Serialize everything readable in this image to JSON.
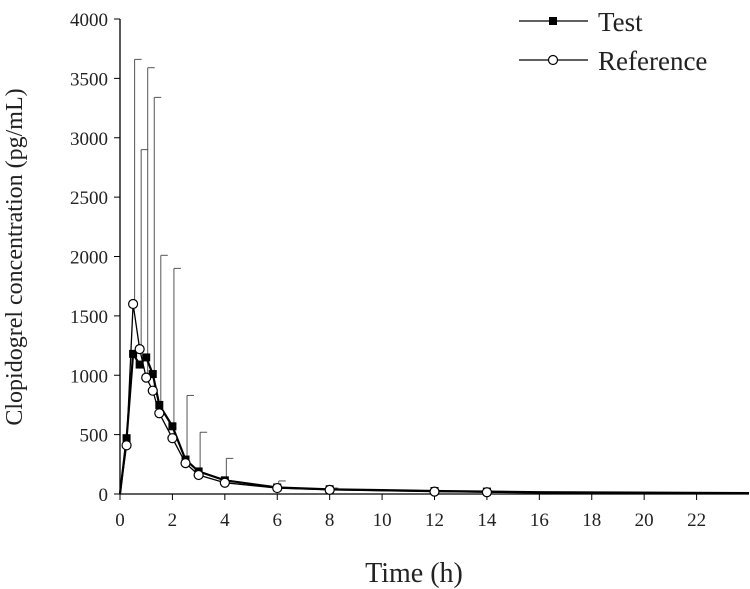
{
  "chart_data": {
    "type": "line",
    "title": "",
    "xlabel": "Time (h)",
    "ylabel": "Clopidogrel concentration (pg/mL)",
    "xlim": [
      0,
      24
    ],
    "ylim": [
      0,
      4000
    ],
    "x_ticks": [
      0,
      2,
      4,
      6,
      8,
      10,
      12,
      14,
      16,
      18,
      20,
      22
    ],
    "y_ticks": [
      0,
      500,
      1000,
      1500,
      2000,
      2500,
      3000,
      3500,
      4000
    ],
    "grid": false,
    "legend_position": "top-right",
    "series": [
      {
        "name": "Test",
        "marker": "filled-square",
        "color": "#000000",
        "x": [
          0,
          0.25,
          0.5,
          0.75,
          1,
          1.25,
          1.5,
          2,
          2.5,
          3,
          4,
          6,
          8,
          12,
          14,
          16,
          24
        ],
        "y": [
          0,
          470,
          1180,
          1090,
          1150,
          1010,
          750,
          570,
          290,
          190,
          115,
          55,
          40,
          25,
          20,
          15,
          8
        ],
        "error": [
          0,
          0,
          0,
          0,
          0,
          0,
          0,
          0,
          0,
          0,
          0,
          0,
          0,
          0,
          0,
          0,
          0
        ]
      },
      {
        "name": "Reference",
        "marker": "open-circle",
        "color": "#000000",
        "x": [
          0,
          0.25,
          0.5,
          0.75,
          1,
          1.25,
          1.5,
          2,
          2.5,
          3,
          4,
          6,
          8,
          12,
          14,
          16,
          24
        ],
        "y": [
          0,
          410,
          1600,
          1220,
          980,
          870,
          680,
          470,
          260,
          160,
          95,
          50,
          35,
          20,
          15,
          10,
          5
        ],
        "error": [
          0,
          0,
          2060,
          1680,
          2610,
          2470,
          1330,
          1430,
          570,
          360,
          205,
          60,
          15,
          5,
          5,
          0,
          0
        ]
      }
    ]
  }
}
